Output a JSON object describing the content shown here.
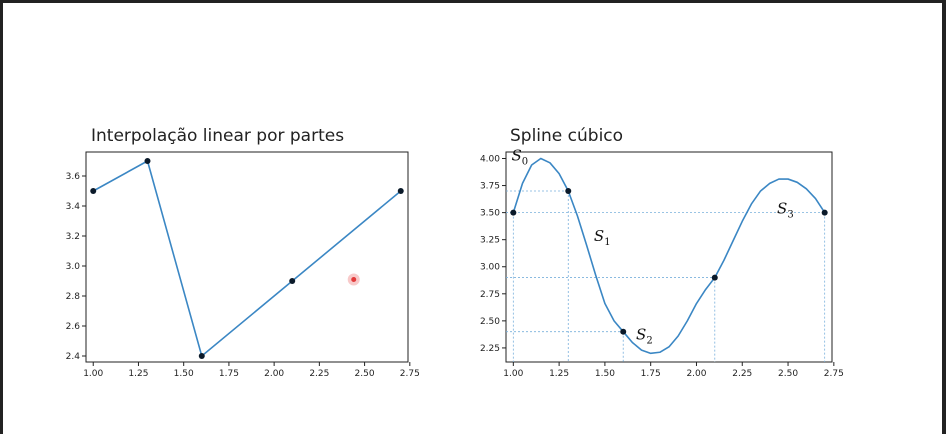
{
  "chart_data": [
    {
      "type": "line",
      "title": "Interpolação linear por partes",
      "xlim": [
        0.96,
        2.74
      ],
      "ylim": [
        2.36,
        3.76
      ],
      "x_ticks": [
        "1.00",
        "1.25",
        "1.50",
        "1.75",
        "2.00",
        "2.25",
        "2.50",
        "2.75"
      ],
      "x_tick_values": [
        1.0,
        1.25,
        1.5,
        1.75,
        2.0,
        2.25,
        2.5,
        2.75
      ],
      "y_ticks": [
        "2.4",
        "2.6",
        "2.8",
        "3.0",
        "3.2",
        "3.4",
        "3.6"
      ],
      "y_tick_values": [
        2.4,
        2.6,
        2.8,
        3.0,
        3.2,
        3.4,
        3.6
      ],
      "series": [
        {
          "x": [
            1.0,
            1.3,
            1.6,
            2.1,
            2.7
          ],
          "y": [
            3.5,
            3.7,
            2.4,
            2.9,
            3.5
          ]
        }
      ],
      "grid": false,
      "colors": {
        "line": "#3b87c4",
        "points": "#0b1a2a"
      }
    },
    {
      "type": "line",
      "title": "Spline cúbico",
      "xlim": [
        0.96,
        2.74
      ],
      "ylim": [
        2.12,
        4.06
      ],
      "x_ticks": [
        "1.00",
        "1.25",
        "1.50",
        "1.75",
        "2.00",
        "2.25",
        "2.50",
        "2.75"
      ],
      "x_tick_values": [
        1.0,
        1.25,
        1.5,
        1.75,
        2.0,
        2.25,
        2.5,
        2.75
      ],
      "y_ticks": [
        "2.25",
        "2.50",
        "2.75",
        "3.00",
        "3.25",
        "3.50",
        "3.75",
        "4.00"
      ],
      "y_tick_values": [
        2.25,
        2.5,
        2.75,
        3.0,
        3.25,
        3.5,
        3.75,
        4.0
      ],
      "knots": {
        "x": [
          1.0,
          1.3,
          1.6,
          2.1,
          2.7
        ],
        "y": [
          3.5,
          3.7,
          2.4,
          2.9,
          3.5
        ]
      },
      "curve": {
        "x": [
          1.0,
          1.05,
          1.1,
          1.15,
          1.2,
          1.25,
          1.3,
          1.35,
          1.4,
          1.45,
          1.5,
          1.55,
          1.6,
          1.65,
          1.7,
          1.75,
          1.8,
          1.85,
          1.9,
          1.95,
          2.0,
          2.05,
          2.1,
          2.15,
          2.2,
          2.25,
          2.3,
          2.35,
          2.4,
          2.45,
          2.5,
          2.55,
          2.6,
          2.65,
          2.7
        ],
        "y": [
          3.5,
          3.77,
          3.94,
          4.0,
          3.96,
          3.86,
          3.7,
          3.47,
          3.2,
          2.92,
          2.66,
          2.5,
          2.4,
          2.3,
          2.23,
          2.2,
          2.21,
          2.26,
          2.36,
          2.5,
          2.66,
          2.79,
          2.9,
          3.06,
          3.24,
          3.42,
          3.58,
          3.7,
          3.77,
          3.81,
          3.81,
          3.78,
          3.72,
          3.63,
          3.5
        ]
      },
      "segment_labels": [
        {
          "text": "S",
          "sub": "0",
          "x": 0.99,
          "y": 3.98
        },
        {
          "text": "S",
          "sub": "1",
          "x": 1.44,
          "y": 3.24
        },
        {
          "text": "S",
          "sub": "2",
          "x": 1.67,
          "y": 2.33
        },
        {
          "text": "S",
          "sub": "3",
          "x": 2.44,
          "y": 3.49
        }
      ],
      "grid": false,
      "guides": "dotted lines from each knot to the axes",
      "colors": {
        "line": "#3b87c4",
        "points": "#0b1a2a",
        "guides": "#79b0dc"
      }
    }
  ],
  "cursor": {
    "x": 2.44,
    "y": 2.91,
    "chart": 0
  }
}
